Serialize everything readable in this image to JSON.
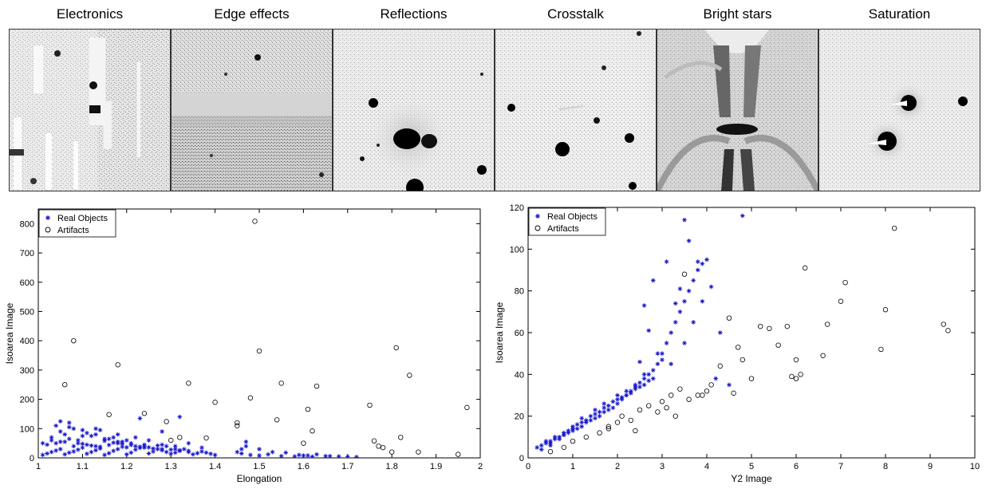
{
  "panels": [
    {
      "title": "Electronics",
      "icon": "electronics-artifact-image"
    },
    {
      "title": "Edge effects",
      "icon": "edge-effects-artifact-image"
    },
    {
      "title": "Reflections",
      "icon": "reflections-artifact-image"
    },
    {
      "title": "Crosstalk",
      "icon": "crosstalk-artifact-image"
    },
    {
      "title": "Bright stars",
      "icon": "bright-stars-artifact-image"
    },
    {
      "title": "Saturation",
      "icon": "saturation-artifact-image"
    }
  ],
  "chart_data": [
    {
      "type": "scatter",
      "title": "",
      "xlabel": "Elongation",
      "ylabel": "Isoarea Image",
      "xlim": [
        1,
        2
      ],
      "ylim": [
        0,
        850
      ],
      "xticks": [
        "1",
        "1.1",
        "1.2",
        "1.3",
        "1.4",
        "1.5",
        "1.6",
        "1.7",
        "1.8",
        "1.9",
        "2"
      ],
      "yticks": [
        "0",
        "100",
        "200",
        "300",
        "400",
        "500",
        "600",
        "700",
        "800"
      ],
      "legend": "top-left",
      "grid": false,
      "series": [
        {
          "name": "Real Objects",
          "marker": "star",
          "color": "#1a1acc",
          "x": [
            1.01,
            1.02,
            1.03,
            1.04,
            1.05,
            1.06,
            1.07,
            1.08,
            1.09,
            1.1,
            1.11,
            1.12,
            1.13,
            1.14,
            1.15,
            1.16,
            1.17,
            1.18,
            1.19,
            1.2,
            1.21,
            1.22,
            1.23,
            1.24,
            1.25,
            1.26,
            1.27,
            1.28,
            1.29,
            1.3,
            1.31,
            1.32,
            1.33,
            1.34,
            1.35,
            1.36,
            1.37,
            1.38,
            1.39,
            1.4,
            1.02,
            1.04,
            1.06,
            1.08,
            1.1,
            1.12,
            1.14,
            1.16,
            1.18,
            1.2,
            1.22,
            1.24,
            1.26,
            1.28,
            1.3,
            1.32,
            1.34,
            1.03,
            1.05,
            1.07,
            1.09,
            1.11,
            1.13,
            1.15,
            1.17,
            1.19,
            1.21,
            1.23,
            1.25,
            1.27,
            1.29,
            1.31,
            1.01,
            1.03,
            1.06,
            1.09,
            1.12,
            1.15,
            1.18,
            1.21,
            1.24,
            1.05,
            1.08,
            1.11,
            1.14,
            1.17,
            1.2,
            1.04,
            1.07,
            1.1,
            1.13,
            1.16,
            1.19,
            1.22,
            1.25,
            1.28,
            1.31,
            1.34,
            1.37,
            1.05,
            1.07,
            1.1,
            1.13,
            1.18,
            1.23,
            1.28,
            1.32,
            1.45,
            1.46,
            1.48,
            1.5,
            1.52,
            1.55,
            1.58,
            1.6,
            1.62,
            1.65,
            1.68,
            1.7,
            1.72,
            1.47,
            1.5,
            1.53,
            1.56,
            1.59,
            1.61,
            1.63,
            1.66,
            1.47,
            1.46
          ],
          "y": [
            10,
            15,
            20,
            25,
            30,
            12,
            18,
            22,
            28,
            35,
            14,
            20,
            26,
            32,
            10,
            16,
            24,
            30,
            38,
            12,
            18,
            28,
            34,
            40,
            15,
            22,
            30,
            26,
            20,
            14,
            18,
            24,
            30,
            20,
            12,
            16,
            22,
            18,
            14,
            10,
            45,
            50,
            55,
            40,
            48,
            42,
            38,
            44,
            50,
            36,
            40,
            35,
            32,
            30,
            28,
            26,
            24,
            60,
            55,
            65,
            50,
            45,
            40,
            58,
            52,
            48,
            44,
            38,
            36,
            42,
            40,
            30,
            50,
            70,
            80,
            60,
            75,
            65,
            55,
            50,
            45,
            90,
            100,
            85,
            95,
            70,
            60,
            110,
            120,
            75,
            80,
            65,
            55,
            70,
            60,
            45,
            40,
            50,
            35,
            125,
            105,
            95,
            100,
            80,
            135,
            90,
            140,
            20,
            15,
            10,
            8,
            12,
            6,
            5,
            8,
            4,
            6,
            5,
            4,
            3,
            55,
            30,
            20,
            18,
            10,
            8,
            12,
            6,
            40,
            30
          ]
        },
        {
          "name": "Artifacts",
          "marker": "circle",
          "color": "#000000",
          "x": [
            1.08,
            1.06,
            1.18,
            1.16,
            1.24,
            1.29,
            1.3,
            1.32,
            1.34,
            1.38,
            1.4,
            1.45,
            1.48,
            1.49,
            1.5,
            1.54,
            1.55,
            1.6,
            1.61,
            1.62,
            1.63,
            1.75,
            1.76,
            1.78,
            1.8,
            1.81,
            1.82,
            1.84,
            1.86,
            1.95,
            1.97,
            1.45,
            1.77
          ],
          "y": [
            400,
            250,
            318,
            148,
            152,
            124,
            60,
            70,
            255,
            68,
            190,
            120,
            205,
            808,
            365,
            130,
            255,
            50,
            166,
            92,
            245,
            180,
            58,
            35,
            20,
            376,
            70,
            282,
            20,
            12,
            172,
            110,
            40
          ]
        }
      ]
    },
    {
      "type": "scatter",
      "title": "",
      "xlabel": "Y2 Image",
      "ylabel": "Isoarea Image",
      "xlim": [
        0,
        10
      ],
      "ylim": [
        0,
        120
      ],
      "xticks": [
        "0",
        "1",
        "2",
        "3",
        "4",
        "5",
        "6",
        "7",
        "8",
        "9",
        "10"
      ],
      "yticks": [
        "0",
        "20",
        "40",
        "60",
        "80",
        "100",
        "120"
      ],
      "legend": "top-left",
      "grid": false,
      "series": [
        {
          "name": "Real Objects",
          "marker": "star",
          "color": "#1a1acc",
          "x": [
            0.2,
            0.3,
            0.4,
            0.5,
            0.6,
            0.7,
            0.8,
            0.9,
            1.0,
            1.1,
            1.2,
            1.3,
            1.4,
            1.5,
            1.6,
            1.7,
            1.8,
            1.9,
            2.0,
            2.1,
            2.2,
            2.3,
            2.4,
            2.5,
            2.6,
            2.7,
            2.8,
            0.4,
            0.6,
            0.8,
            1.0,
            1.2,
            1.4,
            1.6,
            1.8,
            2.0,
            2.2,
            2.4,
            2.6,
            2.8,
            0.5,
            0.7,
            0.9,
            1.1,
            1.3,
            1.5,
            1.7,
            1.9,
            2.1,
            2.3,
            2.5,
            2.7,
            0.3,
            0.5,
            0.8,
            1.0,
            1.2,
            1.5,
            1.7,
            2.0,
            2.2,
            2.4,
            2.6,
            2.9,
            3.0,
            3.1,
            3.2,
            3.3,
            3.4,
            3.5,
            3.6,
            3.7,
            3.8,
            3.9,
            4.0,
            4.1,
            4.3,
            4.8,
            3.5,
            3.6,
            3.8,
            2.8,
            3.1,
            3.3,
            3.9,
            3.7,
            3.5,
            2.9,
            3.2,
            2.6,
            2.7,
            3.4,
            4.5,
            4.2,
            3.0,
            2.5
          ],
          "y": [
            5,
            6,
            7,
            8,
            9,
            10,
            11,
            12,
            13,
            14,
            15,
            17,
            18,
            19,
            20,
            22,
            23,
            24,
            26,
            28,
            30,
            32,
            34,
            36,
            38,
            40,
            42,
            8,
            10,
            12,
            15,
            17,
            20,
            22,
            25,
            28,
            30,
            33,
            35,
            38,
            6,
            9,
            13,
            16,
            18,
            21,
            24,
            27,
            29,
            31,
            34,
            37,
            4,
            7,
            11,
            14,
            19,
            23,
            26,
            30,
            32,
            35,
            40,
            45,
            50,
            55,
            60,
            65,
            70,
            75,
            80,
            85,
            90,
            93,
            95,
            82,
            60,
            116,
            114,
            104,
            94,
            85,
            94,
            74,
            75,
            65,
            55,
            50,
            45,
            73,
            61,
            81,
            35,
            38,
            47,
            46
          ]
        },
        {
          "name": "Artifacts",
          "marker": "circle",
          "color": "#000000",
          "x": [
            0.5,
            0.8,
            1.0,
            1.3,
            1.6,
            1.8,
            2.0,
            2.1,
            2.3,
            2.5,
            2.7,
            2.9,
            3.0,
            3.1,
            3.2,
            3.4,
            3.5,
            3.6,
            3.8,
            4.0,
            4.1,
            4.3,
            4.5,
            4.7,
            4.8,
            5.0,
            5.2,
            5.4,
            5.6,
            5.8,
            6.0,
            6.1,
            6.2,
            6.6,
            6.7,
            7.0,
            7.1,
            7.9,
            8.0,
            8.2,
            9.3,
            9.4,
            1.8,
            2.4,
            3.3,
            3.9,
            4.6,
            5.9,
            6.0
          ],
          "y": [
            3,
            5,
            8,
            10,
            12,
            15,
            17,
            20,
            18,
            23,
            25,
            22,
            27,
            24,
            30,
            33,
            88,
            28,
            30,
            32,
            35,
            44,
            67,
            53,
            47,
            38,
            63,
            62,
            54,
            63,
            47,
            40,
            91,
            49,
            64,
            75,
            84,
            52,
            71,
            110,
            64,
            61,
            14,
            13,
            20,
            30,
            31,
            39,
            38
          ]
        }
      ]
    }
  ]
}
